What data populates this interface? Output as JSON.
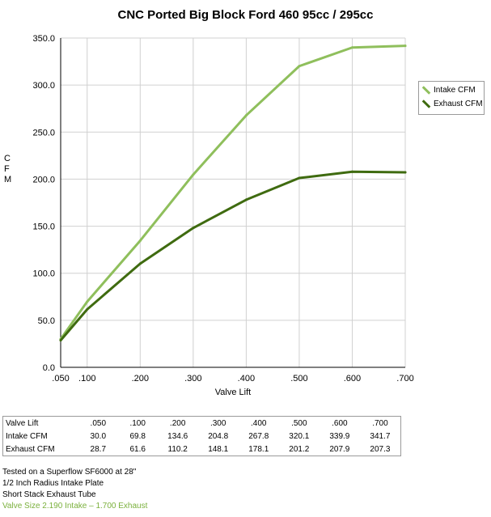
{
  "title": "CNC Ported Big Block Ford 460 95cc / 295cc",
  "chart_data": {
    "type": "line",
    "title": "CNC Ported Big Block Ford 460 95cc / 295cc",
    "xlabel": "Valve Lift",
    "ylabel": "CFM",
    "categories": [
      ".050",
      ".100",
      ".200",
      ".300",
      ".400",
      ".500",
      ".600",
      ".700"
    ],
    "x": [
      0.05,
      0.1,
      0.2,
      0.3,
      0.4,
      0.5,
      0.6,
      0.7
    ],
    "yticks": [
      "0.0",
      "50.0",
      "100.0",
      "150.0",
      "200.0",
      "250.0",
      "300.0",
      "350.0"
    ],
    "ylim": [
      0,
      350
    ],
    "grid": true,
    "legend_position": "right",
    "series": [
      {
        "name": "Intake CFM",
        "color": "#8fbf5c",
        "values": [
          30.0,
          69.8,
          134.6,
          204.8,
          267.8,
          320.1,
          339.9,
          341.7
        ]
      },
      {
        "name": "Exhaust CFM",
        "color": "#3f6b10",
        "values": [
          28.7,
          61.6,
          110.2,
          148.1,
          178.1,
          201.2,
          207.9,
          207.3
        ]
      }
    ]
  },
  "table": {
    "header_label": "Valve Lift",
    "header_values": [
      ".050",
      ".100",
      ".200",
      ".300",
      ".400",
      ".500",
      ".600",
      ".700"
    ],
    "rows": [
      {
        "label": "Intake CFM",
        "values": [
          "30.0",
          "69.8",
          "134.6",
          "204.8",
          "267.8",
          "320.1",
          "339.9",
          "341.7"
        ]
      },
      {
        "label": "Exhaust CFM",
        "values": [
          "28.7",
          "61.6",
          "110.2",
          "148.1",
          "178.1",
          "201.2",
          "207.9",
          "207.3"
        ]
      }
    ]
  },
  "notes": {
    "line1": "Tested on a Superflow SF6000 at 28\"",
    "line2": "1/2 Inch Radius Intake Plate",
    "line3": "Short Stack Exhaust Tube",
    "line4": "Valve Size 2.190 Intake – 1.700 Exhaust",
    "line4_color": "#7ab03c"
  }
}
